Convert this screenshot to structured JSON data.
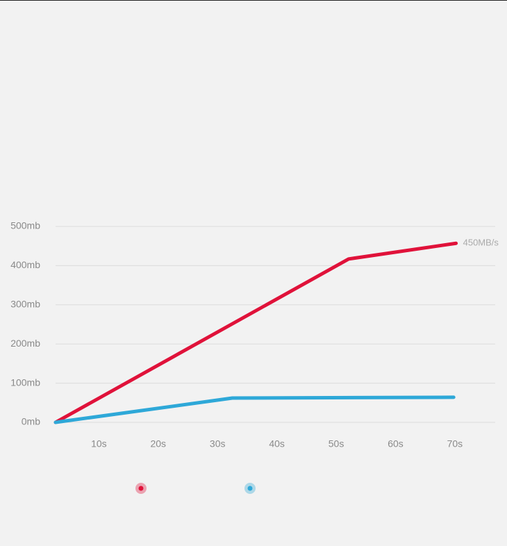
{
  "chart_data": {
    "type": "line",
    "xlim": [
      2.7,
      76.8
    ],
    "xticks": [
      {
        "value": 10,
        "label": "10s"
      },
      {
        "value": 20,
        "label": "20s"
      },
      {
        "value": 30,
        "label": "30s"
      },
      {
        "value": 40,
        "label": "40s"
      },
      {
        "value": 50,
        "label": "50s"
      },
      {
        "value": 60,
        "label": "60s"
      },
      {
        "value": 70,
        "label": "70s"
      }
    ],
    "ylim": [
      0,
      500
    ],
    "yticks": [
      {
        "value": 0,
        "label": "0mb"
      },
      {
        "value": 100,
        "label": "100mb"
      },
      {
        "value": 200,
        "label": "200mb"
      },
      {
        "value": 300,
        "label": "300mb"
      },
      {
        "value": 400,
        "label": "400mb"
      },
      {
        "value": 500,
        "label": "500mb"
      }
    ],
    "grid": true,
    "series": [
      {
        "color": "#e0123a",
        "x": [
          2.7,
          52.1,
          70.2
        ],
        "values": [
          0,
          417,
          457
        ]
      },
      {
        "color": "#2ea8d8",
        "x": [
          2.7,
          32.5,
          69.8
        ],
        "values": [
          0,
          62,
          64
        ]
      }
    ],
    "annotation": "450MB/s"
  }
}
